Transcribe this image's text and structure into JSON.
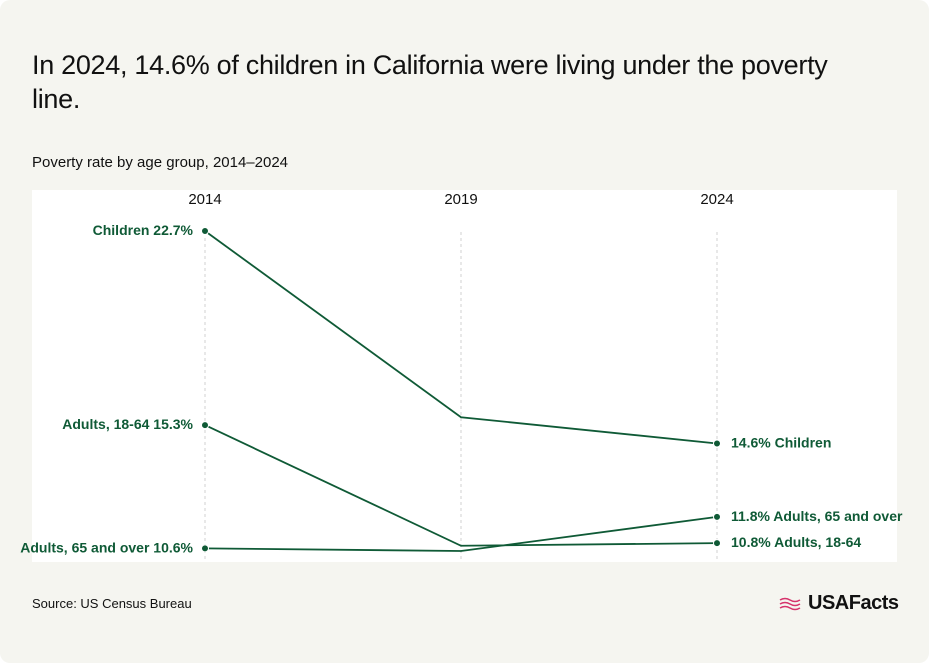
{
  "chart_data": {
    "type": "slope",
    "title": "In 2024, 14.6% of children in California were living under the poverty line.",
    "subtitle": "Poverty rate by age group, 2014–2024",
    "source": "Source: US Census Bureau",
    "categories": [
      "2014",
      "2019",
      "2024"
    ],
    "color": "#0f5a36",
    "grid": true,
    "series": [
      {
        "name": "Children",
        "values": [
          22.7,
          15.6,
          14.6
        ],
        "value_labels": [
          "22.7%",
          null,
          "14.6%"
        ]
      },
      {
        "name": "Adults, 18-64",
        "values": [
          15.3,
          10.7,
          10.8
        ],
        "value_labels": [
          "15.3%",
          null,
          "10.8%"
        ]
      },
      {
        "name": "Adults, 65 and over",
        "values": [
          10.6,
          10.5,
          11.8
        ],
        "value_labels": [
          "10.6%",
          null,
          "11.8%"
        ]
      }
    ]
  },
  "logo": "USAFacts"
}
